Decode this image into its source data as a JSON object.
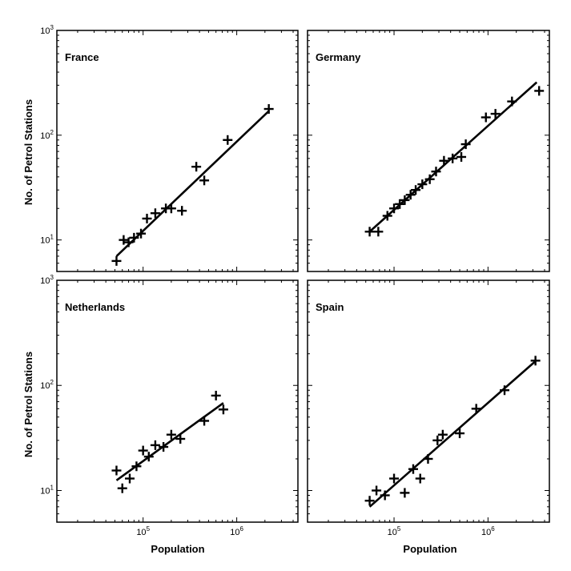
{
  "figure": {
    "ylabel": "No. of Petrol Stations",
    "xlabel": "Population"
  },
  "chart_data": [
    {
      "type": "scatter",
      "title": "France",
      "xscale": "log",
      "yscale": "log",
      "xlim": [
        12000,
        4500000
      ],
      "ylim": [
        5,
        1000
      ],
      "xticks": [
        {
          "value": 100000,
          "label": "10^5"
        },
        {
          "value": 1000000,
          "label": "10^6"
        }
      ],
      "yticks": [
        {
          "value": 10,
          "label": "10^1"
        },
        {
          "value": 100,
          "label": "10^2"
        },
        {
          "value": 1000,
          "label": "10^3"
        }
      ],
      "show_x_tick_labels": false,
      "show_y_tick_labels": true,
      "points": [
        {
          "x": 52000,
          "y": 6.3
        },
        {
          "x": 62000,
          "y": 10
        },
        {
          "x": 70000,
          "y": 9.5
        },
        {
          "x": 80000,
          "y": 10.5
        },
        {
          "x": 95000,
          "y": 11.5
        },
        {
          "x": 110000,
          "y": 16
        },
        {
          "x": 135000,
          "y": 18
        },
        {
          "x": 175000,
          "y": 20
        },
        {
          "x": 200000,
          "y": 20
        },
        {
          "x": 260000,
          "y": 19
        },
        {
          "x": 370000,
          "y": 50
        },
        {
          "x": 450000,
          "y": 37
        },
        {
          "x": 800000,
          "y": 90
        },
        {
          "x": 2200000,
          "y": 178
        }
      ],
      "fit_line": [
        {
          "x": 52000,
          "y": 7
        },
        {
          "x": 2200000,
          "y": 170
        }
      ],
      "reference_line": "y = x (dashed)"
    },
    {
      "type": "scatter",
      "title": "Germany",
      "xscale": "log",
      "yscale": "log",
      "xlim": [
        12000,
        4500000
      ],
      "ylim": [
        5,
        1000
      ],
      "xticks": [
        {
          "value": 100000,
          "label": "10^5"
        },
        {
          "value": 1000000,
          "label": "10^6"
        }
      ],
      "yticks": [
        {
          "value": 10,
          "label": "10^1"
        },
        {
          "value": 100,
          "label": "10^2"
        },
        {
          "value": 1000,
          "label": "10^3"
        }
      ],
      "show_x_tick_labels": false,
      "show_y_tick_labels": false,
      "points": [
        {
          "x": 55000,
          "y": 12
        },
        {
          "x": 68000,
          "y": 12
        },
        {
          "x": 85000,
          "y": 17
        },
        {
          "x": 100000,
          "y": 20
        },
        {
          "x": 115000,
          "y": 22
        },
        {
          "x": 130000,
          "y": 24
        },
        {
          "x": 150000,
          "y": 27
        },
        {
          "x": 170000,
          "y": 30
        },
        {
          "x": 200000,
          "y": 34
        },
        {
          "x": 240000,
          "y": 38
        },
        {
          "x": 280000,
          "y": 45
        },
        {
          "x": 340000,
          "y": 57
        },
        {
          "x": 420000,
          "y": 60
        },
        {
          "x": 520000,
          "y": 62
        },
        {
          "x": 580000,
          "y": 82
        },
        {
          "x": 950000,
          "y": 148
        },
        {
          "x": 1200000,
          "y": 160
        },
        {
          "x": 1800000,
          "y": 210
        },
        {
          "x": 3500000,
          "y": 265
        }
      ],
      "fit_line": [
        {
          "x": 55000,
          "y": 12
        },
        {
          "x": 3300000,
          "y": 320
        }
      ],
      "reference_line": "y = x (dashed)"
    },
    {
      "type": "scatter",
      "title": "Netherlands",
      "xscale": "log",
      "yscale": "log",
      "xlim": [
        12000,
        4500000
      ],
      "ylim": [
        5,
        1000
      ],
      "xticks": [
        {
          "value": 100000,
          "label": "10^5"
        },
        {
          "value": 1000000,
          "label": "10^6"
        }
      ],
      "yticks": [
        {
          "value": 10,
          "label": "10^1"
        },
        {
          "value": 100,
          "label": "10^2"
        },
        {
          "value": 1000,
          "label": "10^3"
        }
      ],
      "show_x_tick_labels": true,
      "show_y_tick_labels": true,
      "points": [
        {
          "x": 52000,
          "y": 15.5
        },
        {
          "x": 60000,
          "y": 10.5
        },
        {
          "x": 72000,
          "y": 13
        },
        {
          "x": 85000,
          "y": 17
        },
        {
          "x": 100000,
          "y": 24
        },
        {
          "x": 115000,
          "y": 21
        },
        {
          "x": 135000,
          "y": 27
        },
        {
          "x": 165000,
          "y": 26
        },
        {
          "x": 200000,
          "y": 34
        },
        {
          "x": 250000,
          "y": 31
        },
        {
          "x": 450000,
          "y": 46
        },
        {
          "x": 600000,
          "y": 80
        },
        {
          "x": 720000,
          "y": 59
        }
      ],
      "fit_line": [
        {
          "x": 52000,
          "y": 12.5
        },
        {
          "x": 720000,
          "y": 68
        }
      ],
      "reference_line": "y = x (dashed)"
    },
    {
      "type": "scatter",
      "title": "Spain",
      "xscale": "log",
      "yscale": "log",
      "xlim": [
        12000,
        4500000
      ],
      "ylim": [
        5,
        1000
      ],
      "xticks": [
        {
          "value": 100000,
          "label": "10^5"
        },
        {
          "value": 1000000,
          "label": "10^6"
        }
      ],
      "yticks": [
        {
          "value": 10,
          "label": "10^1"
        },
        {
          "value": 100,
          "label": "10^2"
        },
        {
          "value": 1000,
          "label": "10^3"
        }
      ],
      "show_x_tick_labels": true,
      "show_y_tick_labels": false,
      "points": [
        {
          "x": 55000,
          "y": 8
        },
        {
          "x": 65000,
          "y": 10
        },
        {
          "x": 80000,
          "y": 9
        },
        {
          "x": 100000,
          "y": 13
        },
        {
          "x": 130000,
          "y": 9.5
        },
        {
          "x": 160000,
          "y": 16
        },
        {
          "x": 190000,
          "y": 13
        },
        {
          "x": 230000,
          "y": 20
        },
        {
          "x": 290000,
          "y": 30
        },
        {
          "x": 330000,
          "y": 34
        },
        {
          "x": 500000,
          "y": 35
        },
        {
          "x": 750000,
          "y": 60
        },
        {
          "x": 1500000,
          "y": 90
        },
        {
          "x": 3200000,
          "y": 172
        }
      ],
      "fit_line": [
        {
          "x": 55000,
          "y": 7
        },
        {
          "x": 3200000,
          "y": 170
        }
      ],
      "reference_line": "y = x (dashed)"
    }
  ]
}
